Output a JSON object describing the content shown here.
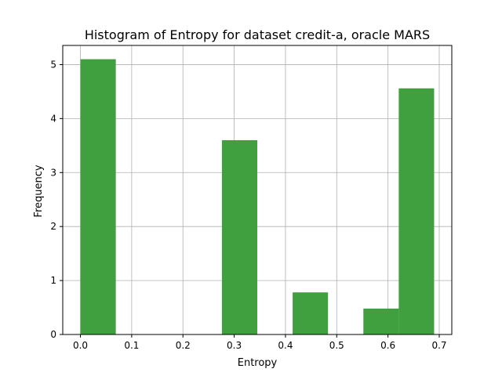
{
  "chart_data": {
    "type": "bar",
    "title": "Histogram of Entropy for dataset credit-a, oracle MARS",
    "xlabel": "Entropy",
    "ylabel": "Frequency",
    "xlim": [
      -0.0345,
      0.7245
    ],
    "ylim": [
      0,
      5.355
    ],
    "x_ticks": [
      0.0,
      0.1,
      0.2,
      0.3,
      0.4,
      0.5,
      0.6,
      0.7
    ],
    "x_tick_labels": [
      "0.0",
      "0.1",
      "0.2",
      "0.3",
      "0.4",
      "0.5",
      "0.6",
      "0.7"
    ],
    "y_ticks": [
      0,
      1,
      2,
      3,
      4,
      5
    ],
    "y_tick_labels": [
      "0",
      "1",
      "2",
      "3",
      "4",
      "5"
    ],
    "grid": true,
    "bar_color": "#409f3f",
    "bins": [
      {
        "x0": 0.0,
        "x1": 0.069,
        "value": 5.1
      },
      {
        "x0": 0.069,
        "x1": 0.138,
        "value": 0
      },
      {
        "x0": 0.138,
        "x1": 0.207,
        "value": 0
      },
      {
        "x0": 0.207,
        "x1": 0.276,
        "value": 0
      },
      {
        "x0": 0.276,
        "x1": 0.345,
        "value": 3.6
      },
      {
        "x0": 0.345,
        "x1": 0.414,
        "value": 0
      },
      {
        "x0": 0.414,
        "x1": 0.483,
        "value": 0.78
      },
      {
        "x0": 0.483,
        "x1": 0.552,
        "value": 0
      },
      {
        "x0": 0.552,
        "x1": 0.621,
        "value": 0.48
      },
      {
        "x0": 0.621,
        "x1": 0.69,
        "value": 4.56
      }
    ]
  }
}
